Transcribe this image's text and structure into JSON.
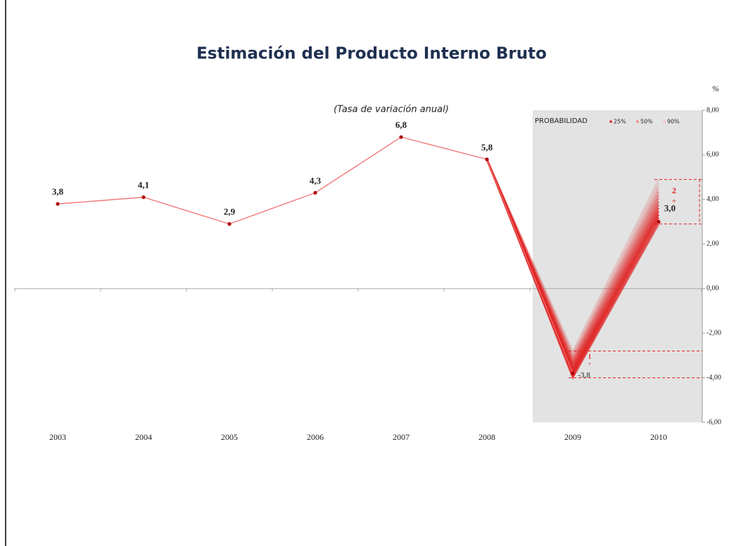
{
  "chart_data": {
    "type": "line",
    "title": "Estimación del Producto Interno Bruto",
    "subtitle": "(Tasa de variación anual)",
    "y_unit": "%",
    "categories": [
      "2003",
      "2004",
      "2005",
      "2006",
      "2007",
      "2008",
      "2009",
      "2010"
    ],
    "values": [
      3.8,
      4.1,
      2.9,
      4.3,
      6.8,
      5.8,
      -3.8,
      3.0
    ],
    "value_labels": [
      "3,8",
      "4,1",
      "2,9",
      "4,3",
      "6,8",
      "5,8",
      "-3,8",
      "3,0"
    ],
    "color": "#f07070",
    "marker_color": "#b00000",
    "fan_color": "#e02020",
    "ranges": {
      "lower": [
        null,
        null,
        null,
        null,
        null,
        null,
        -4.0,
        2.9
      ],
      "upper": [
        null,
        null,
        null,
        null,
        null,
        null,
        -2.8,
        4.9
      ]
    },
    "legend_title": "PROBABILIDAD",
    "legend": [
      {
        "label": "25%",
        "color": "#e02020"
      },
      {
        "label": "50%",
        "color": "#f08080"
      },
      {
        "label": "90%",
        "color": "#f8c0c0"
      }
    ],
    "annotations": [
      {
        "text": "1",
        "category": "2009"
      },
      {
        "text": "2",
        "category": "2010"
      }
    ],
    "ylim": [
      -6,
      8
    ],
    "yticks": [
      {
        "value": 8,
        "label": "8,00"
      },
      {
        "value": 6,
        "label": "6,00"
      },
      {
        "value": 4,
        "label": "4,00"
      },
      {
        "value": 2,
        "label": "2,00"
      },
      {
        "value": 0,
        "label": "0,00"
      },
      {
        "value": -2,
        "label": "-2,00"
      },
      {
        "value": -4,
        "label": "-4,00"
      },
      {
        "value": -6,
        "label": "-6,00"
      }
    ]
  }
}
